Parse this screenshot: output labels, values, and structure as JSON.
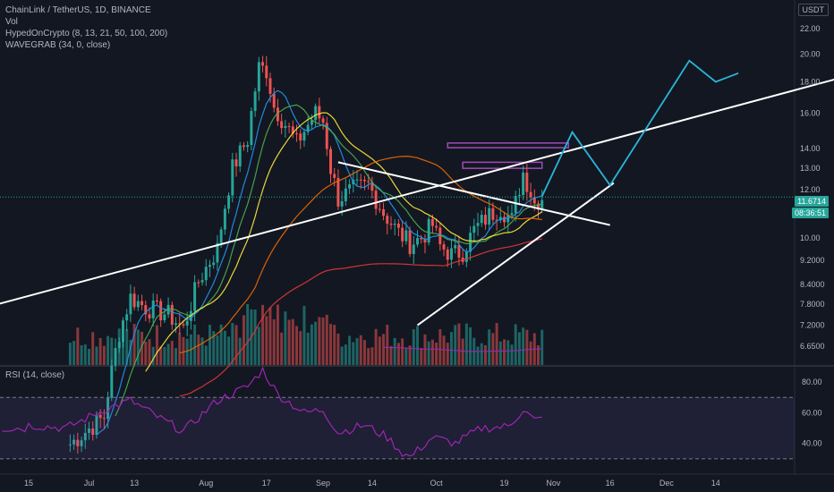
{
  "header": {
    "title": "ChainLink / TetherUS, 1D, BINANCE",
    "vol": "Vol",
    "ind1": "HypedOnCrypto (8, 13, 21, 50, 100, 200)",
    "ind2": "WAVEGRAB (34, 0, close)",
    "currency": "USDT"
  },
  "price_tag": "11.6714",
  "countdown_tag": "08:36:51",
  "colors": {
    "background": "#131722",
    "up": "#26a69a",
    "down": "#ef5350",
    "line": "#ffffff",
    "projection": "#29b6d8",
    "rsi": "#9c27b0",
    "zone": "#a04ab7"
  },
  "chart_data": [
    {
      "type": "candlestick",
      "title": "ChainLink / TetherUS, 1D, BINANCE",
      "x_ticks": [
        "15",
        "Jul",
        "13",
        "Aug",
        "17",
        "Sep",
        "14",
        "Oct",
        "19",
        "Nov",
        "16",
        "Dec",
        "14"
      ],
      "y_ticks": [
        6.65,
        7.2,
        7.8,
        8.4,
        9.2,
        10.0,
        11.0,
        12.0,
        13.0,
        14.0,
        16.0,
        18.0,
        20.0,
        22.0
      ],
      "y_scale": "log",
      "grid": false,
      "close_track": [
        {
          "date": "2020-06-26",
          "close": 4.6
        },
        {
          "date": "2020-07-05",
          "close": 5.1
        },
        {
          "date": "2020-07-09",
          "close": 7.0
        },
        {
          "date": "2020-07-12",
          "close": 8.0
        },
        {
          "date": "2020-07-16",
          "close": 7.7
        },
        {
          "date": "2020-07-22",
          "close": 7.5
        },
        {
          "date": "2020-07-26",
          "close": 7.1
        },
        {
          "date": "2020-07-30",
          "close": 8.5
        },
        {
          "date": "2020-08-04",
          "close": 9.6
        },
        {
          "date": "2020-08-08",
          "close": 13.0
        },
        {
          "date": "2020-08-12",
          "close": 14.5
        },
        {
          "date": "2020-08-15",
          "close": 19.0
        },
        {
          "date": "2020-08-17",
          "close": 18.8
        },
        {
          "date": "2020-08-19",
          "close": 16.4
        },
        {
          "date": "2020-08-25",
          "close": 14.3
        },
        {
          "date": "2020-08-30",
          "close": 16.0
        },
        {
          "date": "2020-09-01",
          "close": 15.5
        },
        {
          "date": "2020-09-03",
          "close": 13.0
        },
        {
          "date": "2020-09-05",
          "close": 11.6
        },
        {
          "date": "2020-09-09",
          "close": 12.0
        },
        {
          "date": "2020-09-13",
          "close": 12.2
        },
        {
          "date": "2020-09-17",
          "close": 11.0
        },
        {
          "date": "2020-09-21",
          "close": 10.2
        },
        {
          "date": "2020-09-24",
          "close": 9.8
        },
        {
          "date": "2020-09-27",
          "close": 10.0
        },
        {
          "date": "2020-09-30",
          "close": 10.5
        },
        {
          "date": "2020-10-02",
          "close": 9.7
        },
        {
          "date": "2020-10-05",
          "close": 9.4
        },
        {
          "date": "2020-10-08",
          "close": 9.5
        },
        {
          "date": "2020-10-11",
          "close": 10.3
        },
        {
          "date": "2020-10-15",
          "close": 10.9
        },
        {
          "date": "2020-10-18",
          "close": 11.2
        },
        {
          "date": "2020-10-21",
          "close": 10.7
        },
        {
          "date": "2020-10-24",
          "close": 12.8
        },
        {
          "date": "2020-10-27",
          "close": 11.4
        },
        {
          "date": "2020-10-29",
          "close": 11.67
        }
      ],
      "trendlines": [
        {
          "from": {
            "date": "2020-06-07",
            "price": 7.8
          },
          "to": {
            "date": "2021-01-15",
            "price": 18.2
          }
        },
        {
          "from": {
            "date": "2020-09-05",
            "price": 13.3
          },
          "to": {
            "date": "2020-11-16",
            "price": 10.5
          }
        },
        {
          "from": {
            "date": "2020-09-26",
            "price": 7.2
          },
          "to": {
            "date": "2020-11-17",
            "price": 12.3
          }
        }
      ],
      "projection": [
        {
          "date": "2020-10-29",
          "price": 11.7
        },
        {
          "date": "2020-11-06",
          "price": 14.9
        },
        {
          "date": "2020-11-16",
          "price": 12.2
        },
        {
          "date": "2020-12-07",
          "price": 19.5
        },
        {
          "date": "2020-12-14",
          "price": 18.0
        },
        {
          "date": "2020-12-20",
          "price": 18.6
        }
      ]
    },
    {
      "type": "line",
      "title": "RSI (14, close)",
      "y_ticks": [
        40.0,
        60.0,
        80.0
      ],
      "bands": [
        30,
        70
      ],
      "series": [
        {
          "values": [
            {
              "date": "2020-06-15",
              "rsi": 52
            },
            {
              "date": "2020-06-25",
              "rsi": 50
            },
            {
              "date": "2020-07-05",
              "rsi": 62
            },
            {
              "date": "2020-07-12",
              "rsi": 68
            },
            {
              "date": "2020-07-20",
              "rsi": 56
            },
            {
              "date": "2020-07-26",
              "rsi": 48
            },
            {
              "date": "2020-08-04",
              "rsi": 68
            },
            {
              "date": "2020-08-12",
              "rsi": 77
            },
            {
              "date": "2020-08-16",
              "rsi": 88
            },
            {
              "date": "2020-08-20",
              "rsi": 72
            },
            {
              "date": "2020-08-27",
              "rsi": 60
            },
            {
              "date": "2020-09-01",
              "rsi": 62
            },
            {
              "date": "2020-09-05",
              "rsi": 47
            },
            {
              "date": "2020-09-12",
              "rsi": 52
            },
            {
              "date": "2020-09-18",
              "rsi": 44
            },
            {
              "date": "2020-09-22",
              "rsi": 34
            },
            {
              "date": "2020-09-24",
              "rsi": 31
            },
            {
              "date": "2020-09-30",
              "rsi": 44
            },
            {
              "date": "2020-10-06",
              "rsi": 40
            },
            {
              "date": "2020-10-13",
              "rsi": 50
            },
            {
              "date": "2020-10-20",
              "rsi": 51
            },
            {
              "date": "2020-10-24",
              "rsi": 62
            },
            {
              "date": "2020-10-27",
              "rsi": 55
            },
            {
              "date": "2020-10-29",
              "rsi": 56
            }
          ]
        }
      ]
    }
  ]
}
